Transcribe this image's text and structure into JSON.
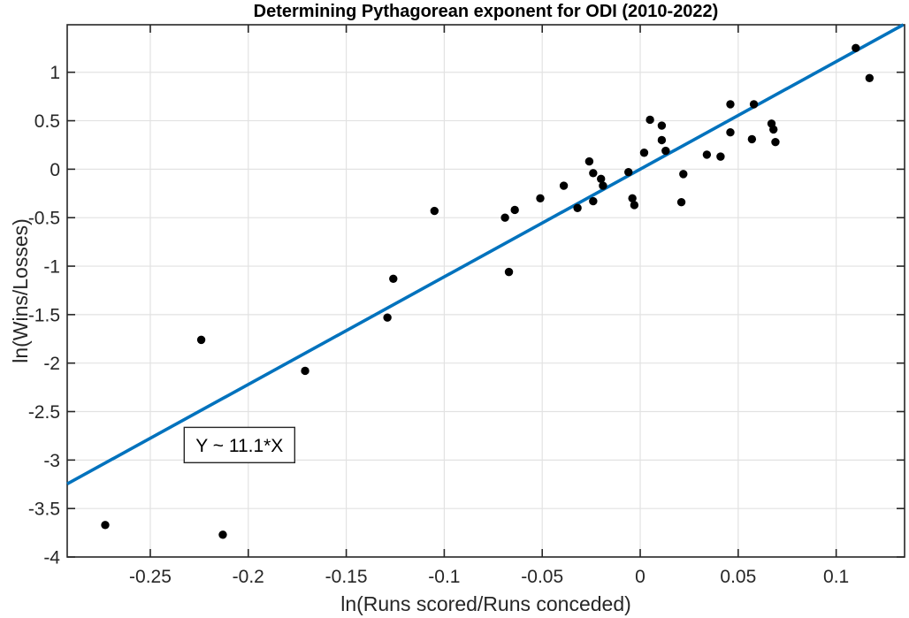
{
  "chart_data": {
    "type": "scatter",
    "title": "Determining Pythagorean exponent for ODI (2010-2022)",
    "xlabel": "ln(Runs scored/Runs conceded)",
    "ylabel": "ln(Wins/Losses)",
    "xlim": [
      -0.2924,
      0.1349
    ],
    "ylim": [
      -4,
      1.49
    ],
    "x_ticks": [
      -0.25,
      -0.2,
      -0.15,
      -0.1,
      -0.05,
      0,
      0.05,
      0.1
    ],
    "x_tick_labels": [
      "-0.25",
      "-0.2",
      "-0.15",
      "-0.1",
      "-0.05",
      "0",
      "0.05",
      "0.1"
    ],
    "y_ticks": [
      -4,
      -3.5,
      -3,
      -2.5,
      -2,
      -1.5,
      -1,
      -0.5,
      0,
      0.5,
      1
    ],
    "y_tick_labels": [
      "-4",
      "-3.5",
      "-3",
      "-2.5",
      "-2",
      "-1.5",
      "-1",
      "-0.5",
      "0",
      "0.5",
      "1"
    ],
    "grid": true,
    "legend": "none",
    "marker_color": "#000000",
    "points": [
      [
        -0.273,
        -3.67
      ],
      [
        -0.213,
        -3.77
      ],
      [
        -0.224,
        -1.76
      ],
      [
        -0.171,
        -2.08
      ],
      [
        -0.129,
        -1.53
      ],
      [
        -0.126,
        -1.13
      ],
      [
        -0.105,
        -0.43
      ],
      [
        -0.069,
        -0.5
      ],
      [
        -0.064,
        -0.42
      ],
      [
        -0.067,
        -1.06
      ],
      [
        -0.051,
        -0.3
      ],
      [
        -0.039,
        -0.17
      ],
      [
        -0.032,
        -0.4
      ],
      [
        -0.026,
        0.08
      ],
      [
        -0.024,
        -0.04
      ],
      [
        -0.02,
        -0.1
      ],
      [
        -0.019,
        -0.17
      ],
      [
        -0.024,
        -0.33
      ],
      [
        -0.006,
        -0.03
      ],
      [
        -0.004,
        -0.3
      ],
      [
        -0.003,
        -0.37
      ],
      [
        0.002,
        0.17
      ],
      [
        0.005,
        0.51
      ],
      [
        0.011,
        0.45
      ],
      [
        0.011,
        0.3
      ],
      [
        0.013,
        0.19
      ],
      [
        0.022,
        -0.05
      ],
      [
        0.021,
        -0.34
      ],
      [
        0.034,
        0.15
      ],
      [
        0.041,
        0.13
      ],
      [
        0.046,
        0.67
      ],
      [
        0.046,
        0.38
      ],
      [
        0.058,
        0.67
      ],
      [
        0.057,
        0.31
      ],
      [
        0.067,
        0.47
      ],
      [
        0.068,
        0.41
      ],
      [
        0.069,
        0.28
      ],
      [
        0.11,
        1.25
      ],
      [
        0.117,
        0.94
      ]
    ],
    "fit_line": {
      "slope": 11.1,
      "intercept": 0,
      "color": "#0072BD"
    },
    "annotation": {
      "text": "Y ~ 11.1*X",
      "box": {
        "x1": -0.2327,
        "y1": -2.663,
        "x2": -0.1763,
        "y2": -3.027
      }
    },
    "colors": {
      "grid": "#e2e2e2",
      "axis": "#262626",
      "tick_label": "#262626",
      "title": "#000000",
      "background": "#ffffff"
    }
  }
}
